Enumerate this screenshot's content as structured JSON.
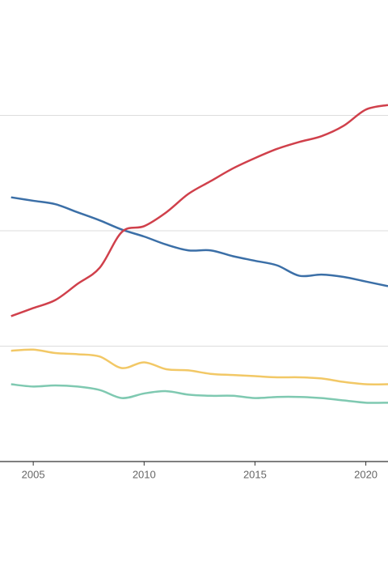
{
  "chart_data": {
    "type": "line",
    "x": [
      2004,
      2005,
      2006,
      2007,
      2008,
      2009,
      2010,
      2011,
      2012,
      2013,
      2014,
      2015,
      2016,
      2017,
      2018,
      2019,
      2020,
      2021
    ],
    "series": [
      {
        "color": "#3b6fa7",
        "values": [
          2.29,
          2.26,
          2.23,
          2.16,
          2.09,
          2.01,
          1.95,
          1.88,
          1.83,
          1.83,
          1.78,
          1.74,
          1.7,
          1.61,
          1.62,
          1.6,
          1.56,
          1.52
        ]
      },
      {
        "color": "#d0404b",
        "values": [
          1.26,
          1.33,
          1.4,
          1.54,
          1.68,
          1.99,
          2.04,
          2.16,
          2.32,
          2.43,
          2.54,
          2.63,
          2.71,
          2.77,
          2.82,
          2.91,
          3.05,
          3.09
        ]
      },
      {
        "color": "#f2c866",
        "values": [
          0.96,
          0.97,
          0.94,
          0.93,
          0.91,
          0.81,
          0.86,
          0.8,
          0.79,
          0.76,
          0.75,
          0.74,
          0.73,
          0.73,
          0.72,
          0.69,
          0.67,
          0.67
        ]
      },
      {
        "color": "#7fc9b1",
        "values": [
          0.67,
          0.65,
          0.66,
          0.65,
          0.62,
          0.55,
          0.59,
          0.61,
          0.58,
          0.57,
          0.57,
          0.55,
          0.56,
          0.56,
          0.55,
          0.53,
          0.51,
          0.51
        ]
      }
    ],
    "xlim": [
      2003.5,
      2021
    ],
    "xticks": [
      2005,
      2010,
      2015,
      2020
    ],
    "ylim": [
      0,
      4
    ],
    "yticks": [
      0,
      1,
      2,
      3
    ],
    "grid": true
  }
}
